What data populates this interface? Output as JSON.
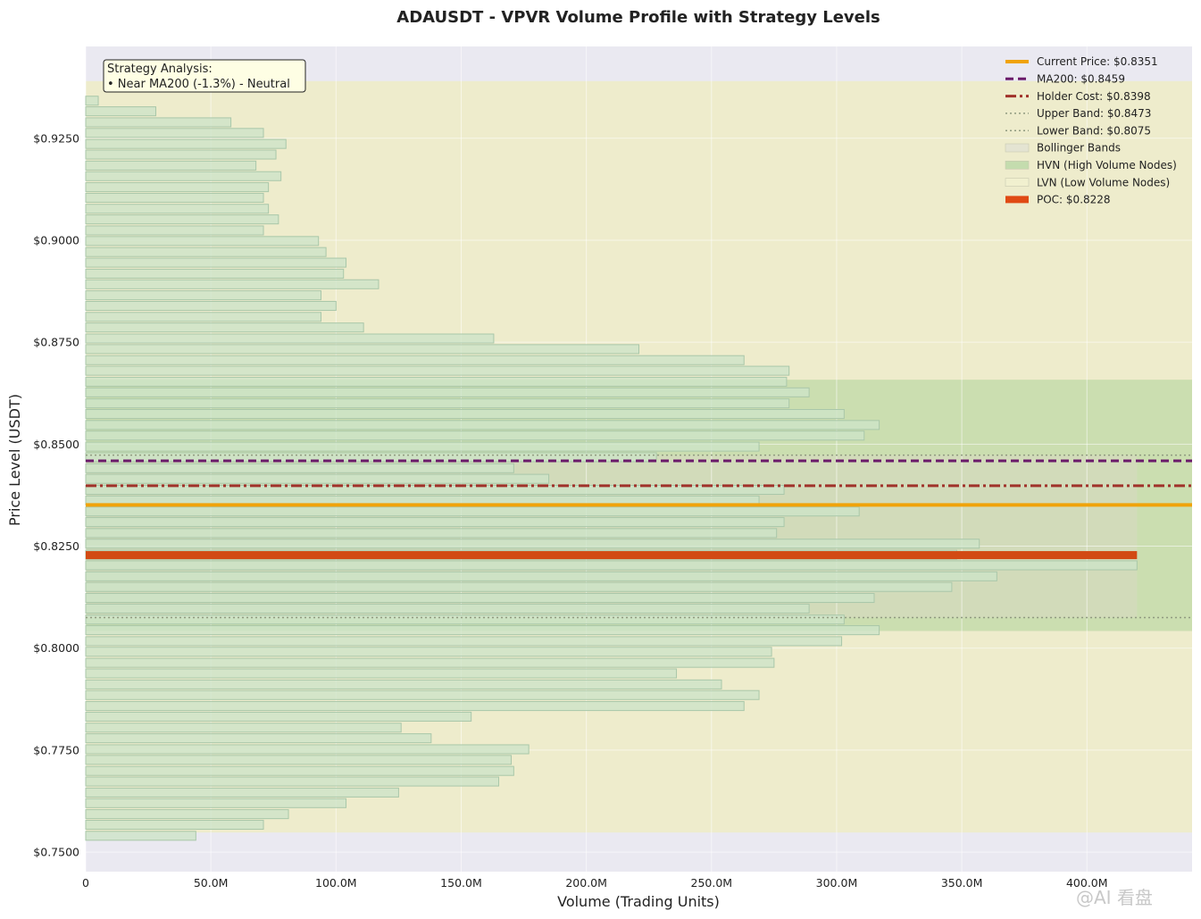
{
  "chart_data": {
    "type": "bar",
    "orientation": "horizontal",
    "title": "ADAUSDT - VPVR Volume Profile with Strategy Levels",
    "xlabel": "Volume (Trading Units)",
    "ylabel": "Price Level (USDT)",
    "xlim": [
      0,
      442000000
    ],
    "ylim": [
      0.7452,
      0.9475
    ],
    "x_ticks": [
      0,
      50000000,
      100000000,
      150000000,
      200000000,
      250000000,
      300000000,
      350000000,
      400000000
    ],
    "x_tick_labels": [
      "0",
      "50.0M",
      "100.0M",
      "150.0M",
      "200.0M",
      "250.0M",
      "300.0M",
      "350.0M",
      "400.0M"
    ],
    "y_ticks": [
      0.75,
      0.775,
      0.8,
      0.825,
      0.85,
      0.875,
      0.9,
      0.925
    ],
    "y_tick_labels": [
      "$0.7500",
      "$0.7750",
      "$0.8000",
      "$0.8250",
      "$0.8500",
      "$0.8750",
      "$0.9000",
      "$0.9250"
    ],
    "grid": true,
    "legend_position": "top-right",
    "bin_height": 0.00264,
    "price_bins": [
      0.754,
      0.7567,
      0.7593,
      0.762,
      0.7646,
      0.7673,
      0.7699,
      0.7726,
      0.7752,
      0.7779,
      0.7805,
      0.7832,
      0.7858,
      0.7885,
      0.7911,
      0.7938,
      0.7964,
      0.7991,
      0.8017,
      0.8044,
      0.807,
      0.8097,
      0.8123,
      0.815,
      0.8176,
      0.8203,
      0.8229,
      0.8256,
      0.8282,
      0.8309,
      0.8335,
      0.8362,
      0.8388,
      0.8415,
      0.8441,
      0.8468,
      0.8494,
      0.8521,
      0.8547,
      0.8574,
      0.86,
      0.8627,
      0.8653,
      0.868,
      0.8706,
      0.8733,
      0.8759,
      0.8786,
      0.8812,
      0.8839,
      0.8865,
      0.8892,
      0.8918,
      0.8945,
      0.8971,
      0.8998,
      0.9024,
      0.9051,
      0.9077,
      0.9104,
      0.913,
      0.9157,
      0.9183,
      0.921,
      0.9236,
      0.9263,
      0.9289,
      0.9316,
      0.9342,
      0.9369
    ],
    "volumes": [
      44,
      71,
      81,
      104,
      125,
      165,
      171,
      170,
      177,
      138,
      126,
      154,
      263,
      269,
      254,
      236,
      275,
      274,
      302,
      317,
      303,
      289,
      315,
      346,
      364,
      420,
      348,
      357,
      276,
      279,
      309,
      269,
      279,
      185,
      171,
      228,
      269,
      311,
      317,
      303,
      281,
      289,
      280,
      281,
      263,
      221,
      163,
      111,
      94,
      100,
      94,
      117,
      103,
      104,
      96,
      93,
      71,
      77,
      73,
      71,
      73,
      78,
      68,
      76,
      80,
      71,
      58,
      28,
      5,
      0
    ],
    "volumes_unit": "M",
    "zones": [
      {
        "name": "LVN (Low Volume Nodes)",
        "y_from": 0.7548,
        "y_to": 0.939,
        "color": "#eeeccc"
      },
      {
        "name": "HVN (High Volume Nodes)",
        "y_from": 0.8042,
        "y_to": 0.8658,
        "color": "#cbdeb0"
      },
      {
        "name": "Bollinger Bands",
        "y_from": 0.8075,
        "y_to": 0.8473,
        "color": "#d9d9c2"
      }
    ],
    "series": [
      {
        "name": "Current Price: $0.8351",
        "y": 0.8351,
        "style": "solid",
        "color": "#f0a30a"
      },
      {
        "name": "MA200: $0.8459",
        "y": 0.8459,
        "style": "dashed",
        "color": "#6a1a6a"
      },
      {
        "name": "Holder Cost: $0.8398",
        "y": 0.8398,
        "style": "dashdot",
        "color": "#a0322a"
      },
      {
        "name": "Upper Band: $0.8473",
        "y": 0.8473,
        "style": "dotted",
        "color": "#909a80"
      },
      {
        "name": "Lower Band: $0.8075",
        "y": 0.8075,
        "style": "dotted",
        "color": "#909a80"
      },
      {
        "name": "POC: $0.8228",
        "y": 0.8228,
        "style": "bar",
        "color": "#d24a14",
        "x_to": 420000000
      }
    ],
    "legend": [
      {
        "label": "Current Price: $0.8351",
        "kind": "solid",
        "color": "#f0a30a"
      },
      {
        "label": "MA200: $0.8459",
        "kind": "dashed",
        "color": "#6a1a6a"
      },
      {
        "label": "Holder Cost: $0.8398",
        "kind": "dashdot",
        "color": "#a0322a"
      },
      {
        "label": "Upper Band: $0.8473",
        "kind": "dotted",
        "color": "#909a80"
      },
      {
        "label": "Lower Band: $0.8075",
        "kind": "dotted",
        "color": "#909a80"
      },
      {
        "label": "Bollinger Bands",
        "kind": "patch",
        "color": "#e4e4d2"
      },
      {
        "label": "HVN (High Volume Nodes)",
        "kind": "patch",
        "color": "#c4dcae"
      },
      {
        "label": "LVN (Low Volume Nodes)",
        "kind": "patch",
        "color": "#f1f0cf"
      },
      {
        "label": "POC: $0.8228",
        "kind": "bar",
        "color": "#e04a14"
      }
    ],
    "annotation": {
      "line1": "Strategy Analysis:",
      "line2": "• Near MA200 (-1.3%) - Neutral"
    }
  },
  "watermark": "@AI 看盘",
  "colors": {
    "plot_bg": "#eae9f1",
    "bar_fill": "#cde3c8",
    "bar_edge": "#a9c7a9",
    "grid": "#ffffff"
  }
}
